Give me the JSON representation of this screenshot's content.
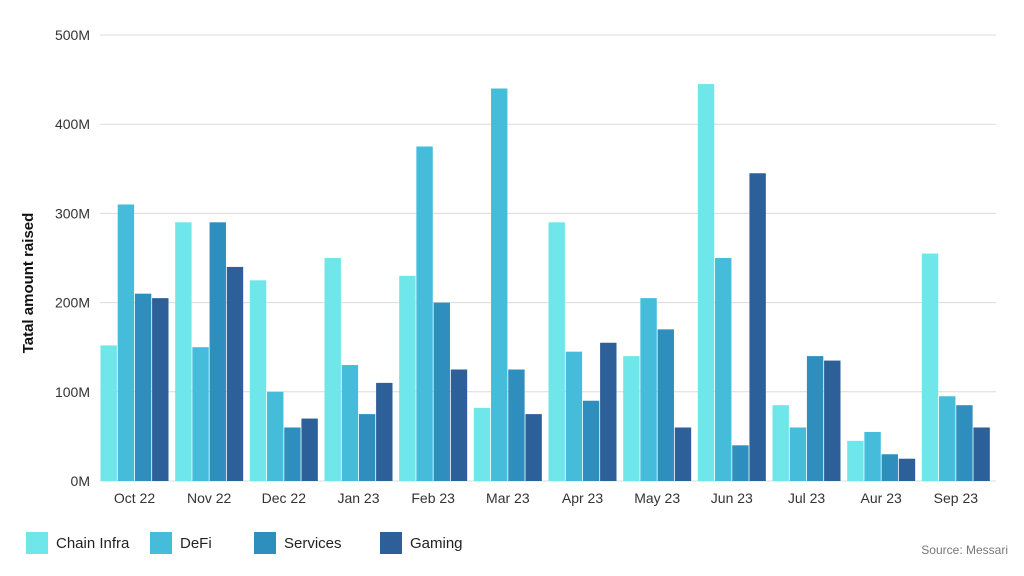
{
  "chart_data": {
    "type": "bar",
    "ylabel": "Tatal amount raised",
    "xlabel": "",
    "ylim": [
      0,
      500
    ],
    "y_ticks": [
      0,
      100,
      200,
      300,
      400,
      500
    ],
    "y_tick_labels": [
      "0M",
      "100M",
      "200M",
      "300M",
      "400M",
      "500M"
    ],
    "grid": true,
    "legend_position": "bottom-left",
    "categories": [
      "Oct 22",
      "Nov 22",
      "Dec 22",
      "Jan 23",
      "Feb 23",
      "Mar 23",
      "Apr 23",
      "May 23",
      "Jun 23",
      "Jul 23",
      "Aur 23",
      "Sep 23"
    ],
    "series": [
      {
        "name": "Chain Infra",
        "color": "#6ee6ea",
        "values": [
          152,
          290,
          225,
          250,
          230,
          82,
          290,
          140,
          445,
          85,
          45,
          255
        ]
      },
      {
        "name": "DeFi",
        "color": "#45bcd9",
        "values": [
          310,
          150,
          100,
          130,
          375,
          440,
          145,
          205,
          250,
          60,
          55,
          95
        ]
      },
      {
        "name": "Services",
        "color": "#2e8fbf",
        "values": [
          210,
          290,
          60,
          75,
          200,
          125,
          90,
          170,
          40,
          140,
          30,
          85
        ]
      },
      {
        "name": "Gaming",
        "color": "#2d5f98",
        "values": [
          205,
          240,
          70,
          110,
          125,
          75,
          155,
          60,
          345,
          135,
          25,
          60
        ]
      }
    ]
  },
  "source": "Source: Messari"
}
